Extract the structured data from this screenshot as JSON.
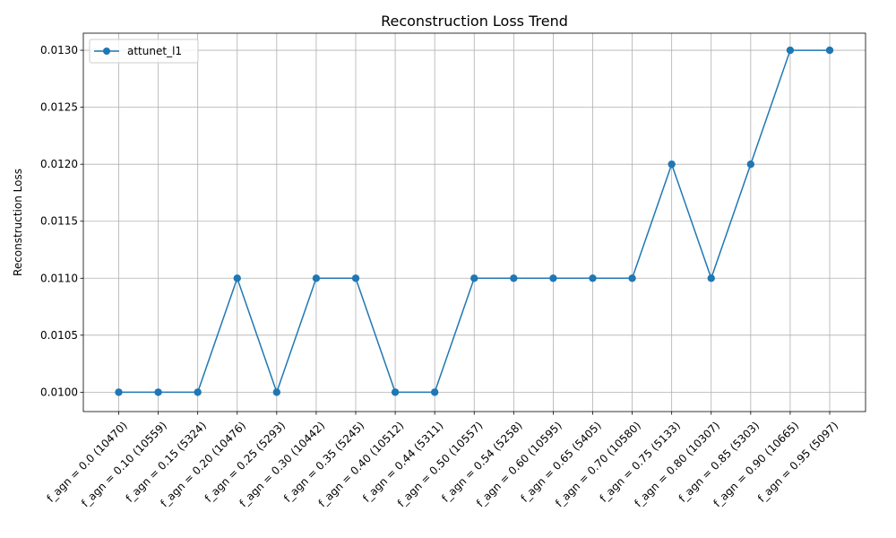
{
  "chart_data": {
    "type": "line",
    "title": "Reconstruction Loss Trend",
    "xlabel": "",
    "ylabel": "Reconstruction Loss",
    "categories": [
      "f_agn = 0.0 (10470)",
      "f_agn = 0.10 (10559)",
      "f_agn = 0.15 (5324)",
      "f_agn = 0.20 (10476)",
      "f_agn = 0.25 (5293)",
      "f_agn = 0.30 (10442)",
      "f_agn = 0.35 (5245)",
      "f_agn = 0.40 (10512)",
      "f_agn = 0.44 (5311)",
      "f_agn = 0.50 (10557)",
      "f_agn = 0.54 (5258)",
      "f_agn = 0.60 (10595)",
      "f_agn = 0.65 (5405)",
      "f_agn = 0.70 (10580)",
      "f_agn = 0.75 (5133)",
      "f_agn = 0.80 (10307)",
      "f_agn = 0.85 (5303)",
      "f_agn = 0.90 (10665)",
      "f_agn = 0.95 (5097)"
    ],
    "series": [
      {
        "name": "attunet_l1",
        "color": "#1f77b4",
        "marker": "circle",
        "values": [
          0.01,
          0.01,
          0.01,
          0.011,
          0.01,
          0.011,
          0.011,
          0.01,
          0.01,
          0.011,
          0.011,
          0.011,
          0.011,
          0.011,
          0.012,
          0.011,
          0.012,
          0.013,
          0.013
        ]
      }
    ],
    "yticks": [
      "0.0100",
      "0.0105",
      "0.0110",
      "0.0115",
      "0.0120",
      "0.0125",
      "0.0130"
    ],
    "ylim": [
      0.00983,
      0.01315
    ],
    "grid": true,
    "legend_position": "top-left"
  }
}
